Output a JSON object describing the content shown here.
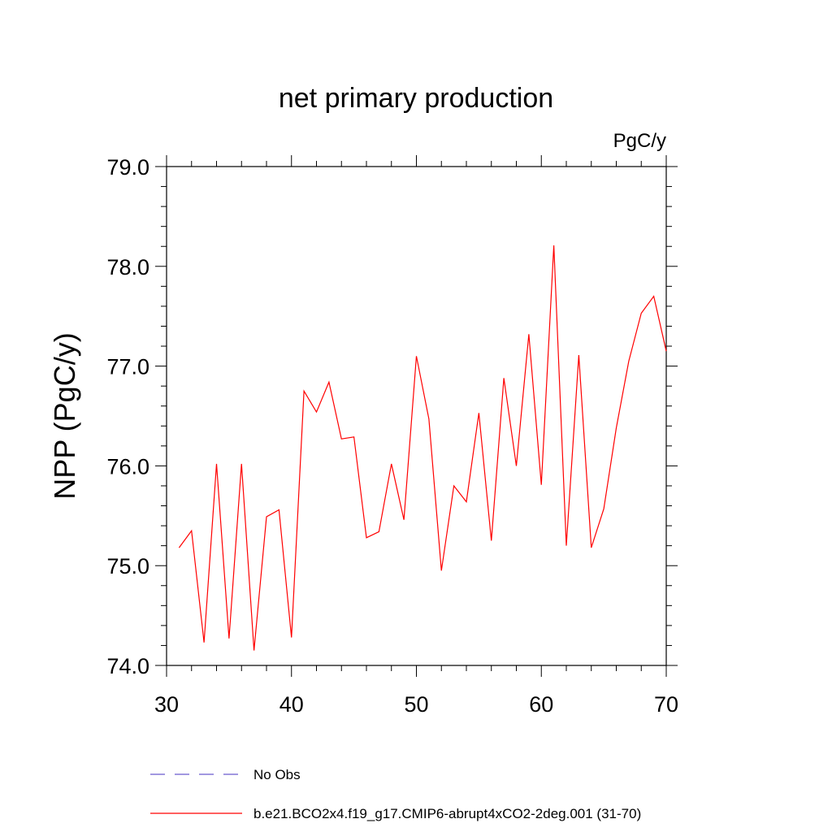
{
  "chart_data": {
    "type": "line",
    "title": "net primary production",
    "units_label": "PgC/y",
    "ylabel": "NPP  (PgC/y)",
    "xlabel": "",
    "xlim": [
      30,
      70
    ],
    "ylim": [
      74.0,
      79.0
    ],
    "x_ticks": [
      "30",
      "40",
      "50",
      "60",
      "70"
    ],
    "y_ticks": [
      "74.0",
      "75.0",
      "76.0",
      "77.0",
      "78.0",
      "79.0"
    ],
    "x": [
      31,
      32,
      33,
      34,
      35,
      36,
      37,
      38,
      39,
      40,
      41,
      42,
      43,
      44,
      45,
      46,
      47,
      48,
      49,
      50,
      51,
      52,
      53,
      54,
      55,
      56,
      57,
      58,
      59,
      60,
      61,
      62,
      63,
      64,
      65,
      66,
      67,
      68,
      69,
      70
    ],
    "series": [
      {
        "name": "b.e21.BCO2x4.f19_g17.CMIP6-abrupt4xCO2-2deg.001 (31-70)",
        "color": "#ff0000",
        "values": [
          75.18,
          75.35,
          74.23,
          76.02,
          74.27,
          76.02,
          74.15,
          75.49,
          75.56,
          74.28,
          76.75,
          76.54,
          76.84,
          76.27,
          76.29,
          75.28,
          75.34,
          76.02,
          75.46,
          77.1,
          76.47,
          74.95,
          75.8,
          75.64,
          76.53,
          75.25,
          76.88,
          76.0,
          77.32,
          75.81,
          78.21,
          75.2,
          77.11,
          75.18,
          75.57,
          76.38,
          77.05,
          77.53,
          77.7,
          77.15
        ]
      }
    ],
    "legend": {
      "placement": "bottom",
      "entries": [
        {
          "label": "No Obs",
          "style": "dashed",
          "color": "#6a5acd"
        },
        {
          "label": "b.e21.BCO2x4.f19_g17.CMIP6-abrupt4xCO2-2deg.001 (31-70)",
          "style": "solid",
          "color": "#ff0000"
        }
      ]
    },
    "grid": false
  }
}
